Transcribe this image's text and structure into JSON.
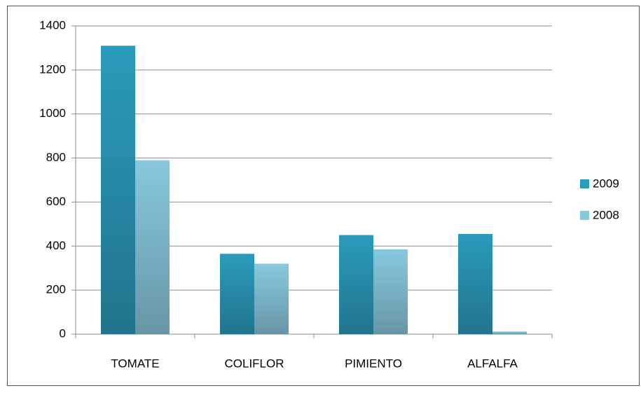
{
  "chart_data": {
    "type": "bar",
    "categories": [
      "TOMATE",
      "COLIFLOR",
      "PIMIENTO",
      "ALFALFA"
    ],
    "series": [
      {
        "name": "2009",
        "color": "#2b9bbb",
        "values": [
          1310,
          365,
          450,
          455
        ]
      },
      {
        "name": "2008",
        "color": "#88c8dd",
        "values": [
          790,
          320,
          385,
          12
        ]
      }
    ],
    "ylim": [
      0,
      1400
    ],
    "yticks": [
      0,
      200,
      400,
      600,
      800,
      1000,
      1200,
      1400
    ],
    "grid": true,
    "legend": "right"
  }
}
